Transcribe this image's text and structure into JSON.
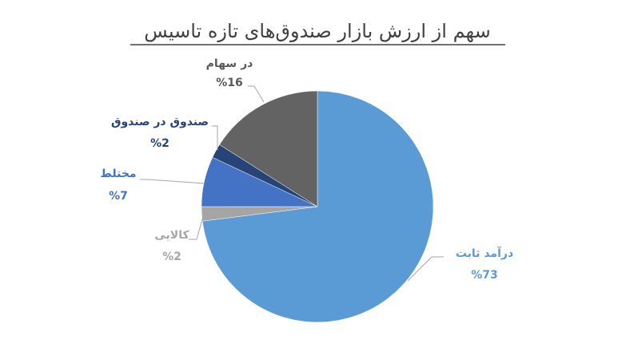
{
  "chart_data": {
    "type": "pie",
    "title": "سهم از ارزش بازار صندوق‌های تازه تاسیس",
    "categories": [
      "درآمد ثابت",
      "کالایی",
      "مختلط",
      "صندوق در صندوق",
      "در سهام"
    ],
    "values": [
      73,
      2,
      7,
      2,
      16
    ],
    "value_labels": [
      "%73",
      "%2",
      "%7",
      "%2",
      "%16"
    ],
    "colors": [
      "#5b9bd5",
      "#a5a5a5",
      "#4472c4",
      "#264478",
      "#636363"
    ]
  }
}
